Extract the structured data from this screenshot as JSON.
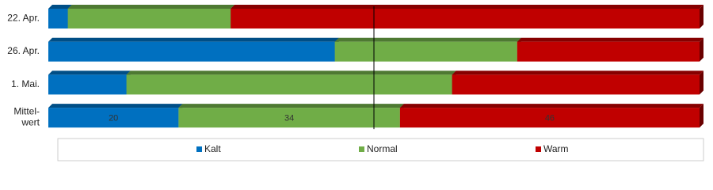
{
  "chart_data": {
    "type": "stacked-bar-3d",
    "categories": [
      "22. Apr.",
      "26. Apr.",
      "1. Mai.",
      "Mittel-\nwert"
    ],
    "series": [
      {
        "name": "Kalt",
        "color": "#0070c0",
        "values": [
          3,
          44,
          12,
          20
        ]
      },
      {
        "name": "Normal",
        "color": "#70ad47",
        "values": [
          25,
          28,
          50,
          34
        ]
      },
      {
        "name": "Warm",
        "color": "#c00000",
        "values": [
          72,
          28,
          38,
          46
        ]
      }
    ],
    "xlim": [
      0,
      100
    ],
    "reference_line": 50,
    "legend": "bottom"
  }
}
